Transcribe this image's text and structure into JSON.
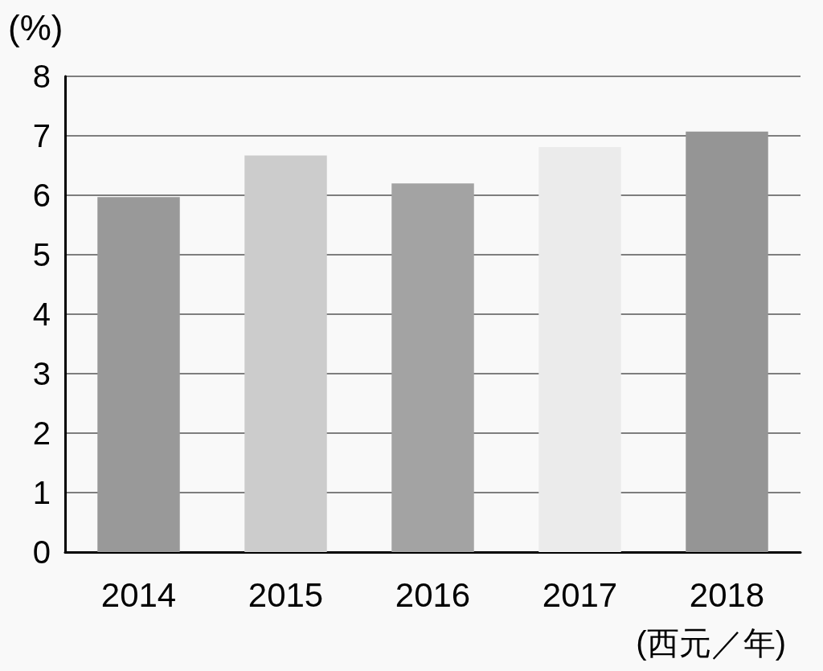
{
  "chart_data": {
    "type": "bar",
    "xlabel": "(西元／年)",
    "ylabel": "(%)",
    "categories": [
      "2014",
      "2015",
      "2016",
      "2017",
      "2018"
    ],
    "values": [
      5.97,
      6.67,
      6.2,
      6.81,
      7.07
    ],
    "colors": [
      "#999999",
      "#cccccc",
      "#a3a3a3",
      "#ebebeb",
      "#959595"
    ],
    "ylim": [
      0,
      8
    ],
    "yticks": [
      0,
      1,
      2,
      3,
      4,
      5,
      6,
      7,
      8
    ],
    "grid": "y"
  }
}
